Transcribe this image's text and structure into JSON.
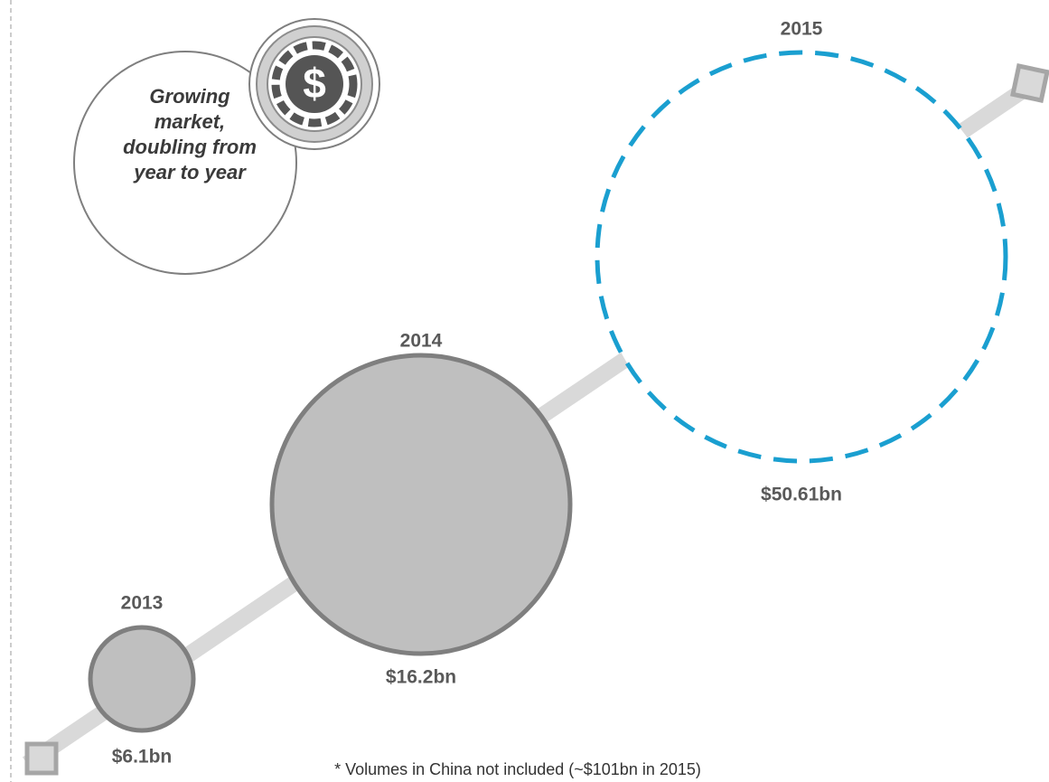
{
  "bubbles": [
    {
      "year": "2013",
      "label": "$6.1bn"
    },
    {
      "year": "2014",
      "label": "$16.2bn"
    },
    {
      "year": "2015",
      "label": "$50.61bn"
    }
  ],
  "callout": {
    "lines": [
      "Growing",
      "market,",
      "doubling from",
      "year to year"
    ]
  },
  "footnote": "* Volumes in China not included (~$101bn in 2015)"
}
